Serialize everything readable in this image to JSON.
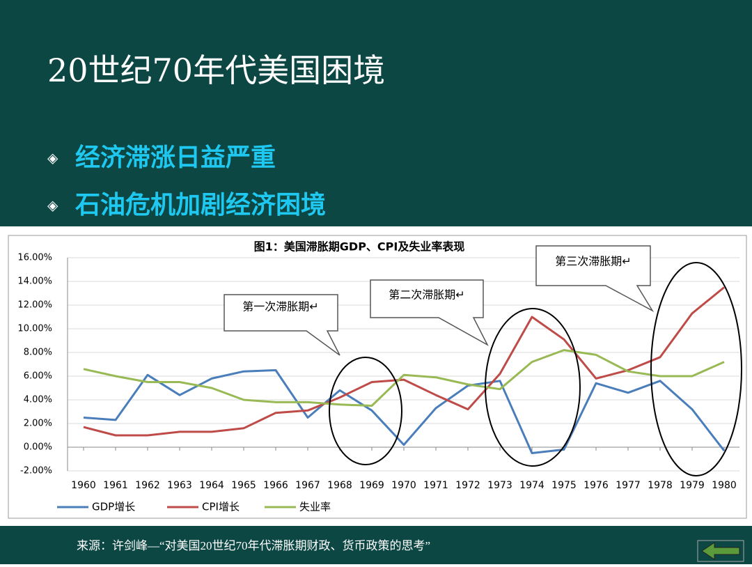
{
  "slide": {
    "title": "20世纪70年代美国困境",
    "bullets": [
      "经济滞涨日益严重",
      "石油危机加剧经济困境"
    ],
    "source": "来源：许剑峰—“对美国20世纪70年代滞胀期财政、货币政策的思考”"
  },
  "chart_data": {
    "type": "line",
    "title": "图1：美国滞胀期GDP、CPI及失业率表现",
    "categories": [
      "1960",
      "1961",
      "1962",
      "1963",
      "1964",
      "1965",
      "1966",
      "1967",
      "1968",
      "1969",
      "1970",
      "1971",
      "1972",
      "1973",
      "1974",
      "1975",
      "1976",
      "1977",
      "1978",
      "1979",
      "1980"
    ],
    "series": [
      {
        "name": "GDP增长",
        "color": "#4a7ebb",
        "values": [
          2.5,
          2.3,
          6.1,
          4.4,
          5.8,
          6.4,
          6.5,
          2.5,
          4.8,
          3.1,
          0.2,
          3.3,
          5.2,
          5.6,
          -0.5,
          -0.2,
          5.4,
          4.6,
          5.6,
          3.2,
          -0.3
        ]
      },
      {
        "name": "CPI增长",
        "color": "#be4b48",
        "values": [
          1.7,
          1.0,
          1.0,
          1.3,
          1.3,
          1.6,
          2.9,
          3.1,
          4.2,
          5.5,
          5.7,
          4.4,
          3.2,
          6.2,
          11.0,
          9.1,
          5.8,
          6.5,
          7.6,
          11.3,
          13.5
        ]
      },
      {
        "name": "失业率",
        "color": "#98b954",
        "values": [
          6.6,
          6.0,
          5.5,
          5.5,
          5.0,
          4.0,
          3.8,
          3.8,
          3.6,
          3.5,
          6.1,
          5.9,
          5.3,
          4.9,
          7.2,
          8.2,
          7.8,
          6.4,
          6.0,
          6.0,
          7.2
        ]
      }
    ],
    "ylim": [
      -2,
      16
    ],
    "yticks": [
      {
        "value": -2,
        "label": "-2.00%"
      },
      {
        "value": 0,
        "label": "0.00%"
      },
      {
        "value": 2,
        "label": "2.00%"
      },
      {
        "value": 4,
        "label": "4.00%"
      },
      {
        "value": 6,
        "label": "6.00%"
      },
      {
        "value": 8,
        "label": "8.00%"
      },
      {
        "value": 10,
        "label": "10.00%"
      },
      {
        "value": 12,
        "label": "12.00%"
      },
      {
        "value": 14,
        "label": "14.00%"
      },
      {
        "value": 16,
        "label": "16.00%"
      }
    ],
    "grid": true,
    "annotations": [
      "第一次滞胀期↵",
      "第二次滞胀期↵",
      "第三次滞胀期↵"
    ]
  }
}
